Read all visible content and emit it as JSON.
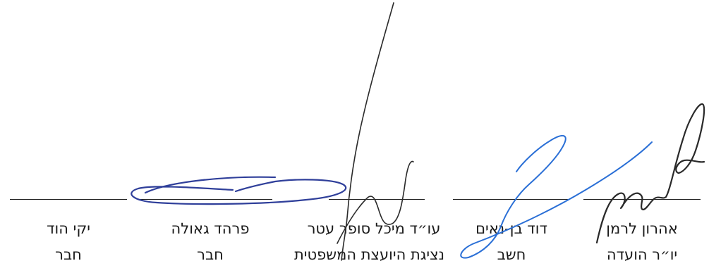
{
  "signatories": [
    {
      "name": "אהרון לרמן",
      "role": "יו״ר הועדה"
    },
    {
      "name": "דוד בן-נאים",
      "role": "חשב"
    },
    {
      "name": "עו״ד מיכל סופר עטר",
      "role": "נציגת היועצת המשפטית"
    },
    {
      "name": "פרהד גאולה",
      "role": "חבר"
    },
    {
      "name": "יקי הוד",
      "role": "חבר"
    }
  ],
  "ink_colors": {
    "black": "#2a2a2a",
    "blue": "#2a6fd6",
    "navy": "#2f3f9a"
  }
}
